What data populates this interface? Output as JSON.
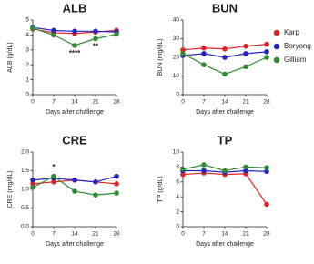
{
  "chart_data": [
    {
      "type": "line",
      "title": "ALB",
      "y_label": "ALB (g/dL)",
      "x_label": "Days after challenge",
      "x": [
        0,
        7,
        14,
        21,
        28
      ],
      "xlim": [
        0,
        28
      ],
      "xticks": [
        0,
        7,
        14,
        21,
        28
      ],
      "ylim": [
        0,
        5
      ],
      "yticks": [
        0,
        1,
        2,
        3,
        4,
        5
      ],
      "series": [
        {
          "name": "Karp",
          "color": "#e02424",
          "values": [
            4.4,
            4.15,
            4.1,
            4.2,
            4.3
          ]
        },
        {
          "name": "Boryong",
          "color": "#2424c0",
          "values": [
            4.5,
            4.3,
            4.25,
            4.25,
            4.2
          ]
        },
        {
          "name": "Gilliam",
          "color": "#2e8b2e",
          "values": [
            4.45,
            4.0,
            3.3,
            3.75,
            4.05
          ]
        }
      ],
      "annotations": [
        {
          "text": "****",
          "x": 14
        },
        {
          "text": "**",
          "x": 21
        }
      ]
    },
    {
      "type": "line",
      "title": "BUN",
      "y_label": "BUN (mg/dL)",
      "x_label": "Days after challenge",
      "x": [
        0,
        7,
        14,
        21,
        28
      ],
      "xlim": [
        0,
        28
      ],
      "xticks": [
        0,
        7,
        14,
        21,
        28
      ],
      "ylim": [
        0,
        40
      ],
      "yticks": [
        0,
        10,
        20,
        30,
        40
      ],
      "series": [
        {
          "name": "Karp",
          "color": "#e02424",
          "values": [
            24,
            25,
            24.5,
            26,
            27
          ]
        },
        {
          "name": "Boryong",
          "color": "#2424c0",
          "values": [
            21,
            22,
            20,
            22,
            23
          ]
        },
        {
          "name": "Gilliam",
          "color": "#2e8b2e",
          "values": [
            22,
            16,
            11,
            15,
            20
          ]
        }
      ]
    },
    {
      "type": "line",
      "title": "CRE",
      "y_label": "CRE (mg/dL)",
      "x_label": "Days after challenge",
      "x": [
        0,
        7,
        14,
        21,
        28
      ],
      "xlim": [
        0,
        28
      ],
      "xticks": [
        0,
        7,
        14,
        21,
        28
      ],
      "ylim": [
        0,
        2
      ],
      "yticks": [
        {
          "value": 0,
          "label": "0.0"
        },
        {
          "value": 0.5,
          "label": "0.5"
        },
        {
          "value": 1,
          "label": "1.0"
        },
        {
          "value": 1.5,
          "label": "1.5"
        },
        {
          "value": 2,
          "label": "2.0"
        }
      ],
      "series": [
        {
          "name": "Karp",
          "color": "#e02424",
          "values": [
            1.15,
            1.2,
            1.25,
            1.2,
            1.15
          ]
        },
        {
          "name": "Boryong",
          "color": "#2424c0",
          "values": [
            1.25,
            1.3,
            1.25,
            1.2,
            1.35
          ]
        },
        {
          "name": "Gilliam",
          "color": "#2e8b2e",
          "values": [
            1.05,
            1.35,
            0.95,
            0.85,
            0.9
          ]
        }
      ],
      "annotations": [
        {
          "text": "*",
          "x": 7
        }
      ]
    },
    {
      "type": "line",
      "title": "TP",
      "y_label": "TP (g/dL)",
      "x_label": "Days after challenge",
      "x": [
        0,
        7,
        14,
        21,
        28
      ],
      "xlim": [
        0,
        28
      ],
      "xticks": [
        0,
        7,
        14,
        21,
        28
      ],
      "ylim": [
        0,
        10
      ],
      "yticks": [
        0,
        2,
        4,
        6,
        8,
        10
      ],
      "series": [
        {
          "name": "Karp",
          "color": "#e02424",
          "values": [
            7,
            7.2,
            7,
            7.1,
            3.0
          ]
        },
        {
          "name": "Boryong",
          "color": "#2424c0",
          "values": [
            7.5,
            7.5,
            7.3,
            7.5,
            7.4
          ]
        },
        {
          "name": "Gilliam",
          "color": "#2e8b2e",
          "values": [
            7.7,
            8.3,
            7.5,
            8,
            7.9
          ]
        }
      ]
    }
  ]
}
